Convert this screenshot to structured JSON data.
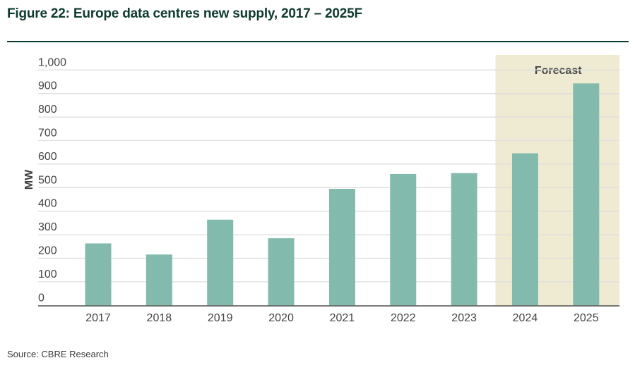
{
  "title": "Figure 22: Europe data centres new supply, 2017 – 2025F",
  "source": "Source: CBRE Research",
  "chart_data": {
    "type": "bar",
    "title": "Figure 22: Europe data centres new supply, 2017 – 2025F",
    "xlabel": "",
    "ylabel": "MW",
    "ylim": [
      0,
      1000
    ],
    "yticks": [
      0,
      100,
      200,
      300,
      400,
      500,
      600,
      700,
      800,
      900,
      1000
    ],
    "ytick_labels": [
      "0",
      "100",
      "200",
      "300",
      "400",
      "500",
      "600",
      "700",
      "800",
      "900",
      "1,000"
    ],
    "categories": [
      "2017",
      "2018",
      "2019",
      "2020",
      "2021",
      "2022",
      "2023",
      "2024",
      "2025"
    ],
    "values": [
      263,
      216,
      364,
      285,
      495,
      558,
      562,
      646,
      943
    ],
    "grid": true,
    "forecast_region": {
      "label": "Forecast",
      "categories": [
        "2024",
        "2025"
      ]
    },
    "colors": {
      "bar": "#82bbad",
      "forecast_shade": "#efead2",
      "grid": "#dedede",
      "axis": "#555555"
    }
  }
}
